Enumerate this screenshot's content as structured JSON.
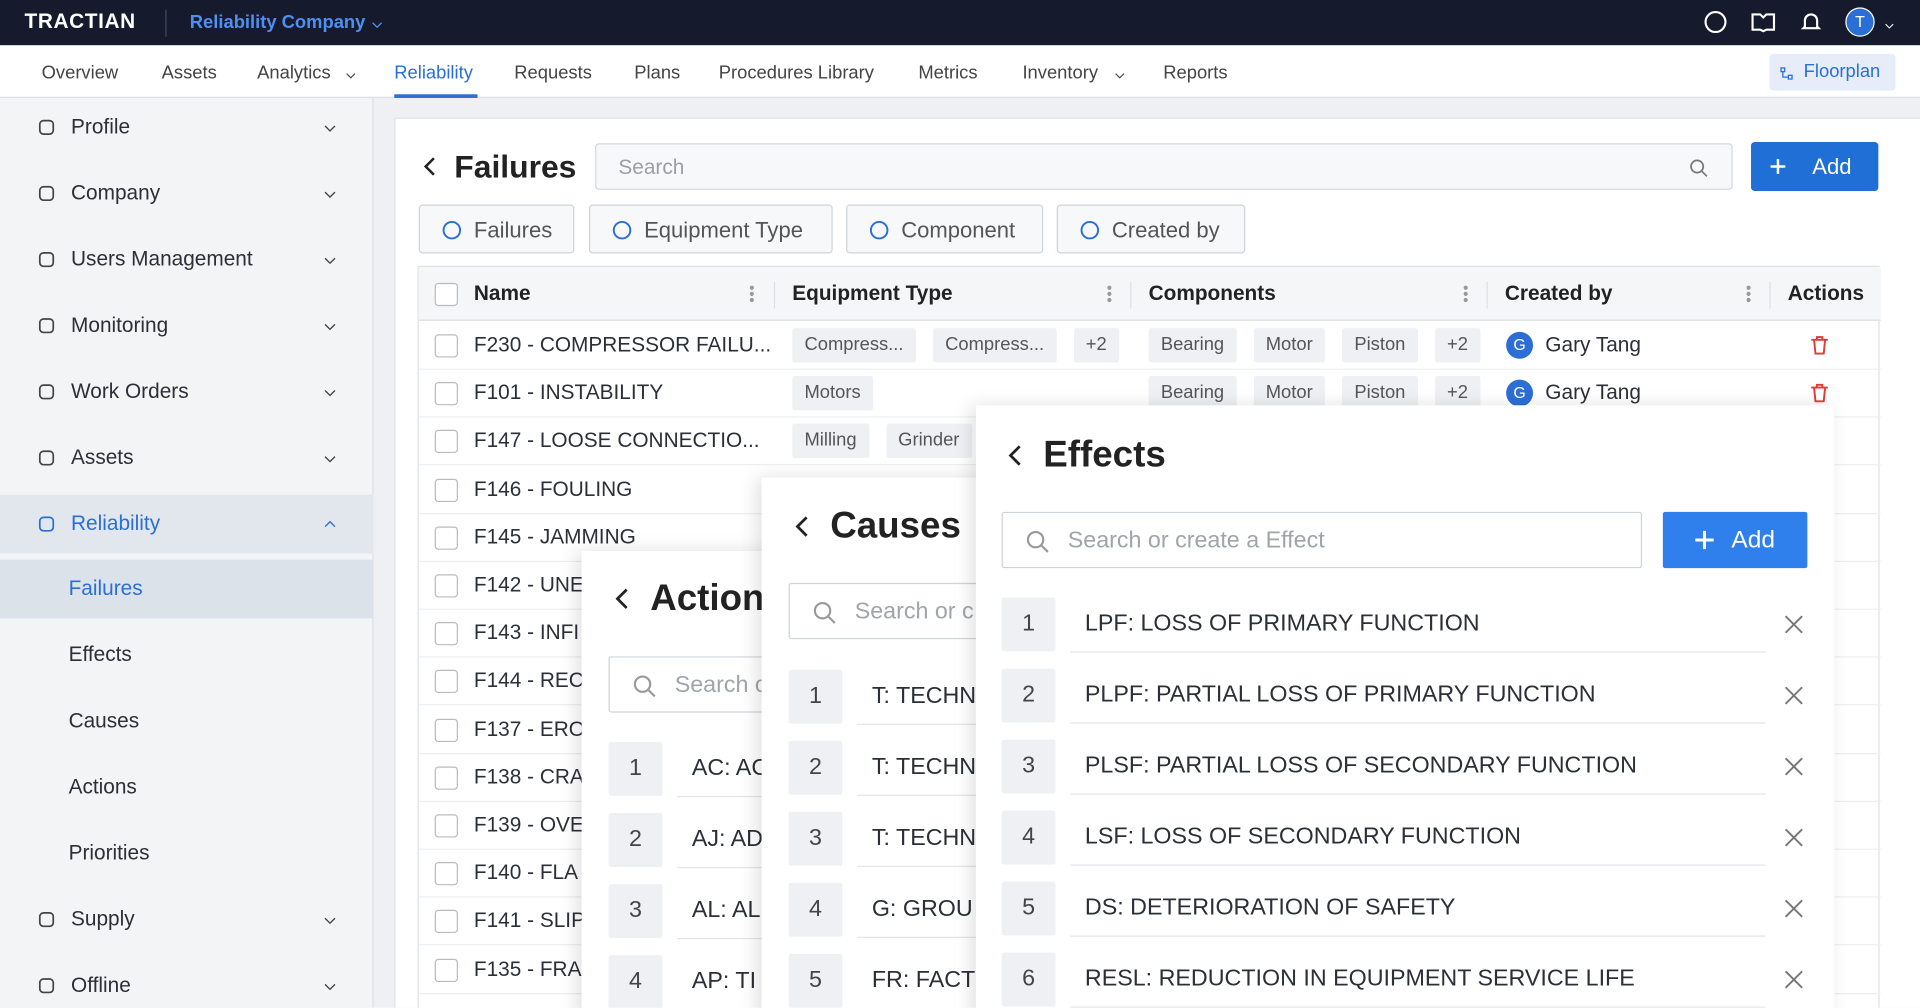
{
  "header": {
    "brand": "TRACTIAN",
    "company": "Reliability Company",
    "avatar": "T"
  },
  "nav": {
    "items": [
      "Overview",
      "Assets",
      "Analytics",
      "Reliability",
      "Requests",
      "Plans",
      "Procedures Library",
      "Metrics",
      "Inventory",
      "Reports"
    ],
    "floorplan": "Floorplan"
  },
  "sidebar": {
    "items": [
      "Profile",
      "Company",
      "Users Management",
      "Monitoring",
      "Work Orders",
      "Assets",
      "Reliability"
    ],
    "subitems": [
      "Failures",
      "Effects",
      "Causes",
      "Actions",
      "Priorities"
    ],
    "bottom": [
      "Supply",
      "Offline"
    ]
  },
  "main": {
    "title": "Failures",
    "search": "Search",
    "add": "Add",
    "filters": [
      "Failures",
      "Equipment Type",
      "Component",
      "Created by"
    ],
    "table": {
      "columns": [
        "Name",
        "Equipment Type",
        "Components",
        "Created by",
        "Actions"
      ],
      "rows": [
        {
          "name": "F230 - COMPRESSOR FAILU...",
          "equipment": [
            "Compress...",
            "Compress...",
            "+2"
          ],
          "components": [
            "Bearing",
            "Motor",
            "Piston",
            "+2"
          ],
          "created_by": {
            "avatar": "G",
            "name": "Gary Tang"
          }
        },
        {
          "name": "F101 - INSTABILITY",
          "equipment": [
            "Motors"
          ],
          "components": [
            "Bearing",
            "Motor",
            "Piston",
            "+2"
          ],
          "created_by": {
            "avatar": "G",
            "name": "Gary Tang"
          }
        },
        {
          "name": "F147 - LOOSE CONNECTIO...",
          "equipment": [
            "Milling",
            "Grinder"
          ]
        },
        {
          "name": "F146 - FOULING"
        },
        {
          "name": "F145 - JAMMING"
        },
        {
          "name": "F142 - UNE"
        },
        {
          "name": "F143 - INFI"
        },
        {
          "name": "F144 - REC"
        },
        {
          "name": "F137 - ERO"
        },
        {
          "name": "F138 - CRA"
        },
        {
          "name": "F139 - OVE"
        },
        {
          "name": "F140 - FLA"
        },
        {
          "name": "F141 - SLIP"
        },
        {
          "name": "F135 - FRA"
        }
      ]
    }
  },
  "panels": {
    "actions": {
      "title": "Action",
      "search": "Search o",
      "items": [
        {
          "number": "1",
          "label": "AC: AC"
        },
        {
          "number": "2",
          "label": "AJ: AD"
        },
        {
          "number": "3",
          "label": "AL: AL"
        },
        {
          "number": "4",
          "label": "AP: TI"
        }
      ]
    },
    "causes": {
      "title": "Causes",
      "search": "Search or c",
      "items": [
        {
          "number": "1",
          "label": "T: TECHN"
        },
        {
          "number": "2",
          "label": "T: TECHN"
        },
        {
          "number": "3",
          "label": "T: TECHN"
        },
        {
          "number": "4",
          "label": "G: GROU"
        },
        {
          "number": "5",
          "label": "FR: FACT"
        }
      ]
    },
    "effects": {
      "title": "Effects",
      "search": "Search or create a Effect",
      "add": "Add",
      "items": [
        {
          "number": "1",
          "label": "LPF: LOSS OF PRIMARY FUNCTION"
        },
        {
          "number": "2",
          "label": "PLPF: PARTIAL LOSS OF PRIMARY FUNCTION"
        },
        {
          "number": "3",
          "label": "PLSF: PARTIAL LOSS OF SECONDARY FUNCTION"
        },
        {
          "number": "4",
          "label": "LSF: LOSS OF SECONDARY FUNCTION"
        },
        {
          "number": "5",
          "label": "DS: DETERIORATION OF SAFETY"
        },
        {
          "number": "6",
          "label": "RESL: REDUCTION IN EQUIPMENT SERVICE LIFE"
        }
      ]
    }
  }
}
